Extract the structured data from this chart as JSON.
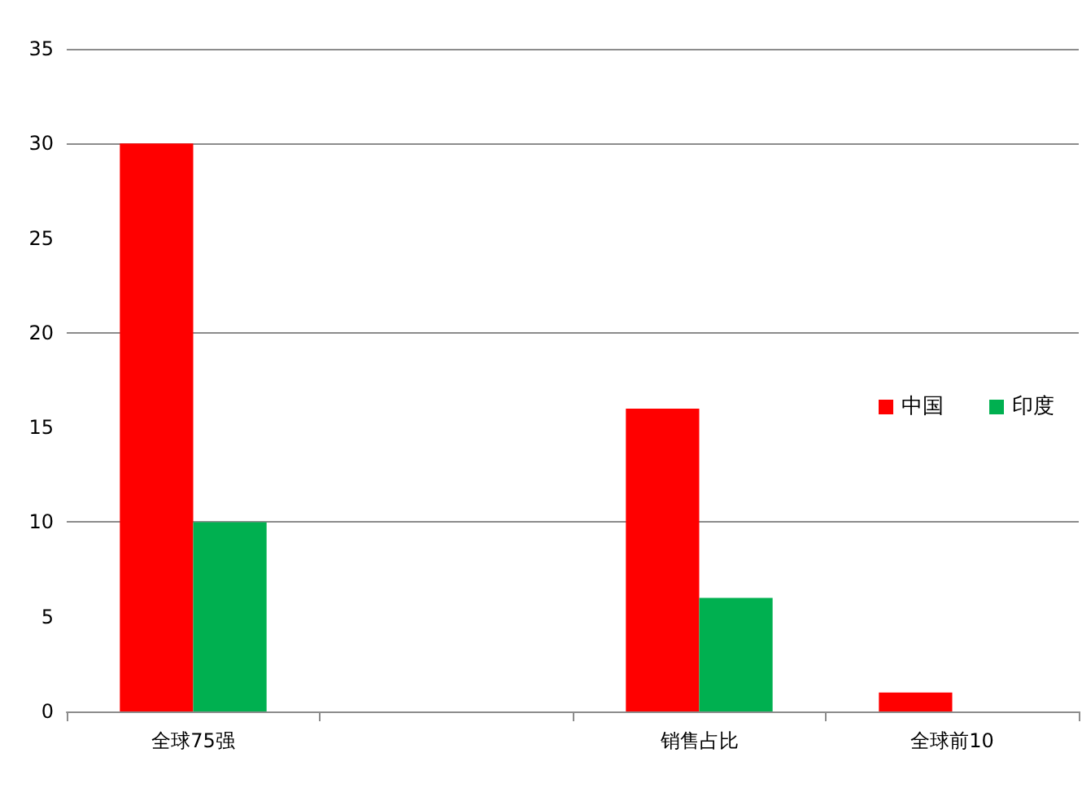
{
  "chart_data": {
    "type": "bar",
    "categories": [
      "全球75强",
      null,
      "销售占比",
      "全球前10"
    ],
    "series": [
      {
        "name": "中国",
        "color": "#ff0000",
        "values": [
          30,
          null,
          16,
          1
        ]
      },
      {
        "name": "印度",
        "color": "#00b050",
        "values": [
          10,
          null,
          6,
          null
        ]
      }
    ],
    "ylim": [
      0,
      35
    ],
    "yticks": [
      0,
      5,
      10,
      15,
      20,
      25,
      30,
      35
    ],
    "grid": "y",
    "legend": "right"
  }
}
